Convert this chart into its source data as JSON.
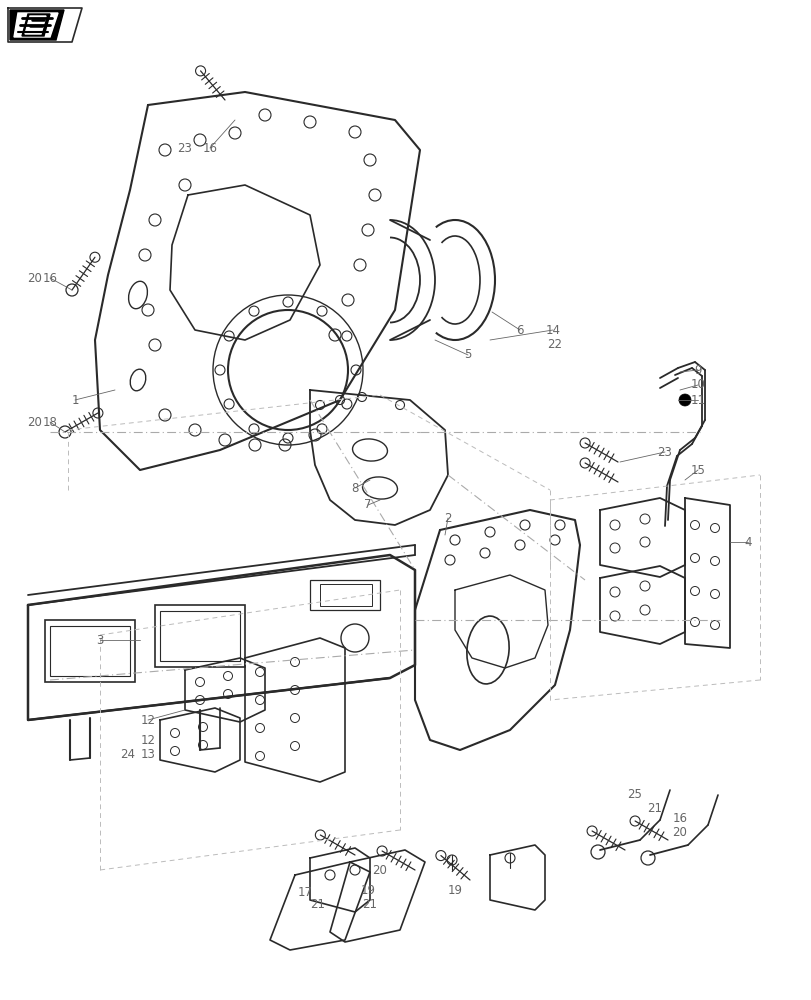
{
  "bg_color": "#ffffff",
  "lc": "#2a2a2a",
  "dc": "#aaaaaa",
  "tc": "#666666",
  "lw_main": 1.4,
  "lw_thin": 0.8,
  "lw_dash": 0.7,
  "fig_w": 8.12,
  "fig_h": 10.0,
  "dpi": 100
}
